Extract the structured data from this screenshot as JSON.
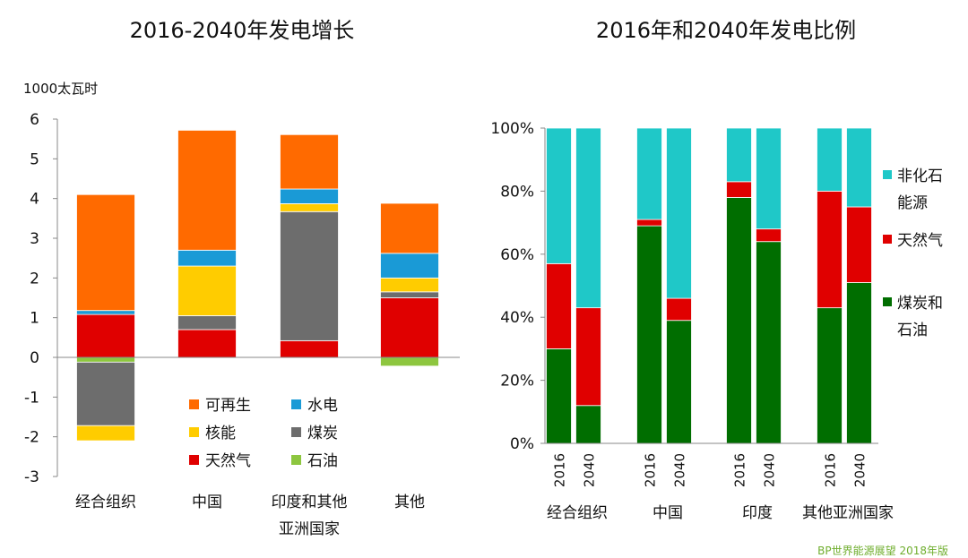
{
  "chart_data": [
    {
      "type": "bar",
      "stacked": true,
      "title": "2016-2040年发电增长",
      "ylabel": "1000太瓦时",
      "xlabel": "",
      "ylim": [
        -3,
        6
      ],
      "yticks": [
        -3,
        -2,
        -1,
        0,
        1,
        2,
        3,
        4,
        5,
        6
      ],
      "categories": [
        "经合组织",
        "中国",
        "印度和其他亚洲国家",
        "其他"
      ],
      "category_lines": [
        [
          "经合组织"
        ],
        [
          "中国"
        ],
        [
          "印度和其他",
          "亚洲国家"
        ],
        [
          "其他"
        ]
      ],
      "series": [
        {
          "name": "石油",
          "color": "#8dc63f",
          "values": [
            -0.12,
            0,
            0,
            -0.22
          ]
        },
        {
          "name": "天然气",
          "color": "#e00000",
          "values": [
            1.08,
            0.7,
            0.42,
            1.5
          ]
        },
        {
          "name": "煤炭",
          "color": "#6d6d6d",
          "values": [
            -1.6,
            0.35,
            3.25,
            0.15
          ]
        },
        {
          "name": "核能",
          "color": "#ffcc00",
          "values": [
            -0.38,
            1.25,
            0.2,
            0.35
          ]
        },
        {
          "name": "水电",
          "color": "#1a9ad6",
          "values": [
            0.1,
            0.4,
            0.37,
            0.62
          ]
        },
        {
          "name": "可再生",
          "color": "#ff6a00",
          "values": [
            2.92,
            3.02,
            1.37,
            1.26
          ]
        }
      ],
      "legend": {
        "placement": "bottom-center",
        "columns": 2,
        "order": [
          "可再生",
          "水电",
          "核能",
          "煤炭",
          "天然气",
          "石油"
        ]
      },
      "grid": false
    },
    {
      "type": "bar",
      "stacked": true,
      "percent": true,
      "title": "2016年和2040年发电比例",
      "ylim": [
        0,
        100
      ],
      "yticks": [
        0,
        20,
        40,
        60,
        80,
        100
      ],
      "ytick_labels": [
        "0%",
        "20%",
        "40%",
        "60%",
        "80%",
        "100%"
      ],
      "groups": [
        "经合组织",
        "中国",
        "印度",
        "其他亚洲国家"
      ],
      "x": [
        "2016",
        "2040"
      ],
      "series": [
        {
          "name": "煤炭和石油",
          "color": "#006e00",
          "values": [
            [
              30,
              12
            ],
            [
              69,
              39
            ],
            [
              78,
              64
            ],
            [
              43,
              51
            ]
          ]
        },
        {
          "name": "天然气",
          "color": "#e00000",
          "values": [
            [
              27,
              31
            ],
            [
              2,
              7
            ],
            [
              5,
              4
            ],
            [
              37,
              24
            ]
          ]
        },
        {
          "name": "非化石能源",
          "color": "#1fc8c8",
          "values": [
            [
              43,
              57
            ],
            [
              29,
              54
            ],
            [
              17,
              32
            ],
            [
              20,
              25
            ]
          ]
        }
      ],
      "legend": {
        "placement": "right",
        "entries": [
          {
            "name": "非化石能源",
            "lines": [
              "非化石",
              "能源"
            ],
            "color": "#1fc8c8"
          },
          {
            "name": "天然气",
            "lines": [
              "天然气"
            ],
            "color": "#e00000"
          },
          {
            "name": "煤炭和石油",
            "lines": [
              "煤炭和",
              "石油"
            ],
            "color": "#006e00"
          }
        ]
      },
      "grid": false
    }
  ],
  "source": "BP世界能源展望 2018年版"
}
